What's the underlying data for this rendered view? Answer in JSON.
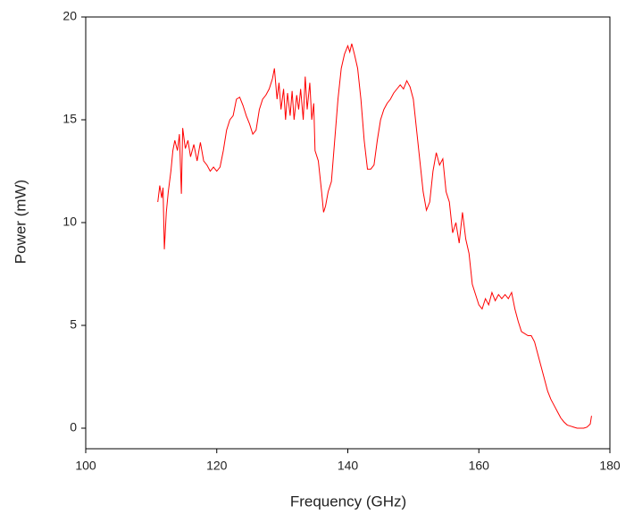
{
  "chart_data": {
    "type": "line",
    "xlabel": "Frequency (GHz)",
    "ylabel": "Power (mW)",
    "color": "#ff0000",
    "xlim": [
      100,
      180
    ],
    "xticks": [
      100,
      120,
      140,
      160,
      180
    ],
    "ylim": [
      -1,
      20
    ],
    "yticks": [
      0,
      5,
      10,
      15,
      20
    ],
    "x": [
      111,
      111.3,
      111.6,
      111.8,
      112,
      112.3,
      112.6,
      113,
      113.3,
      113.6,
      114,
      114.3,
      114.6,
      114.8,
      115.2,
      115.6,
      116,
      116.5,
      117,
      117.5,
      118,
      118.5,
      119,
      119.5,
      120,
      120.5,
      121,
      121.5,
      122,
      122.5,
      123,
      123.5,
      124,
      124.5,
      125,
      125.5,
      126,
      126.5,
      127,
      127.5,
      128,
      128.5,
      128.8,
      129.2,
      129.5,
      129.8,
      130.2,
      130.5,
      130.8,
      131.2,
      131.5,
      131.8,
      132.2,
      132.5,
      132.8,
      133.2,
      133.5,
      133.8,
      134.2,
      134.5,
      134.8,
      135,
      135.5,
      136,
      136.3,
      136.6,
      137,
      137.5,
      138,
      138.5,
      139,
      139.5,
      140,
      140.3,
      140.6,
      141,
      141.5,
      142,
      142.5,
      143,
      143.5,
      144,
      144.5,
      145,
      145.5,
      146,
      146.5,
      147,
      147.5,
      148,
      148.5,
      149,
      149.5,
      150,
      150.5,
      151,
      151.5,
      152,
      152.5,
      153,
      153.5,
      154,
      154.5,
      155,
      155.5,
      156,
      156.5,
      157,
      157.5,
      158,
      158.5,
      159,
      159.5,
      160,
      160.5,
      161,
      161.5,
      162,
      162.5,
      163,
      163.5,
      164,
      164.5,
      165,
      165.5,
      166,
      166.5,
      167,
      167.5,
      168,
      168.5,
      169,
      169.5,
      170,
      170.5,
      171,
      171.5,
      172,
      172.5,
      173,
      173.5,
      174,
      174.5,
      175,
      175.5,
      176,
      176.5,
      177,
      177.2
    ],
    "values": [
      11.0,
      11.8,
      11.2,
      11.7,
      8.7,
      10.5,
      11.5,
      12.5,
      13.5,
      14.0,
      13.5,
      14.3,
      11.4,
      14.6,
      13.6,
      14.0,
      13.2,
      13.8,
      13.0,
      13.9,
      13.0,
      12.8,
      12.5,
      12.7,
      12.5,
      12.7,
      13.5,
      14.5,
      15.0,
      15.2,
      16.0,
      16.1,
      15.7,
      15.2,
      14.8,
      14.3,
      14.5,
      15.5,
      16.0,
      16.2,
      16.5,
      17.0,
      17.5,
      16.0,
      16.8,
      15.5,
      16.5,
      15.0,
      16.3,
      15.2,
      16.4,
      15.0,
      16.2,
      15.5,
      16.5,
      15.0,
      17.1,
      15.5,
      16.8,
      15.0,
      15.8,
      13.5,
      13.0,
      11.5,
      10.5,
      10.8,
      11.5,
      12.0,
      14.0,
      16.0,
      17.5,
      18.2,
      18.6,
      18.3,
      18.7,
      18.2,
      17.5,
      16.0,
      14.0,
      12.6,
      12.6,
      12.8,
      14.0,
      15.0,
      15.5,
      15.8,
      16.0,
      16.3,
      16.5,
      16.7,
      16.5,
      16.9,
      16.6,
      16.0,
      14.5,
      13.0,
      11.5,
      10.6,
      11.0,
      12.5,
      13.4,
      12.8,
      13.1,
      11.5,
      11.0,
      9.5,
      10.0,
      9.0,
      10.5,
      9.2,
      8.5,
      7.0,
      6.5,
      6.0,
      5.8,
      6.3,
      6.0,
      6.6,
      6.2,
      6.5,
      6.3,
      6.5,
      6.3,
      6.6,
      5.8,
      5.2,
      4.7,
      4.6,
      4.5,
      4.5,
      4.2,
      3.6,
      3.0,
      2.4,
      1.8,
      1.4,
      1.1,
      0.8,
      0.5,
      0.3,
      0.15,
      0.1,
      0.05,
      0.0,
      0.0,
      0.0,
      0.05,
      0.2,
      0.6
    ]
  }
}
